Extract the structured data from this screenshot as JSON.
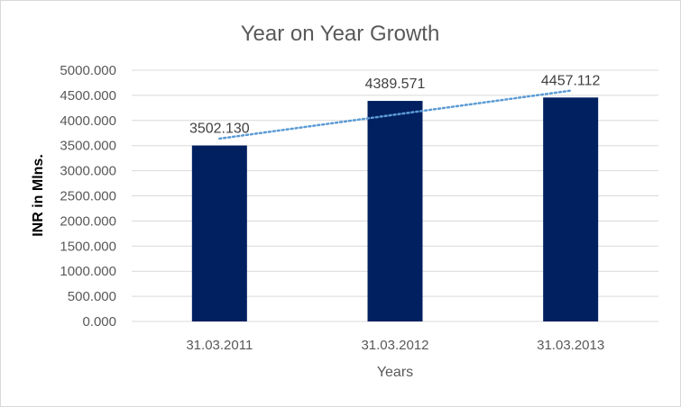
{
  "chart_data": {
    "type": "bar",
    "title": "Year on Year Growth",
    "xlabel": "Years",
    "ylabel": "INR in Mlns.",
    "categories": [
      "31.03.2011",
      "31.03.2012",
      "31.03.2013"
    ],
    "values": [
      3502.13,
      4389.571,
      4457.112
    ],
    "data_labels": [
      "3502.130",
      "4389.571",
      "4457.112"
    ],
    "ylim": [
      0,
      5000
    ],
    "y_ticks": [
      "0.000",
      "500.000",
      "1000.000",
      "1500.000",
      "2000.000",
      "2500.000",
      "3000.000",
      "3500.000",
      "4000.000",
      "4500.000",
      "5000.000"
    ],
    "grid": true,
    "legend": "none",
    "trendline": {
      "type": "linear",
      "style": "dotted"
    },
    "colors": {
      "bar": "#002060",
      "trendline": "#5b9bd5",
      "grid": "#d9d9d9"
    }
  }
}
